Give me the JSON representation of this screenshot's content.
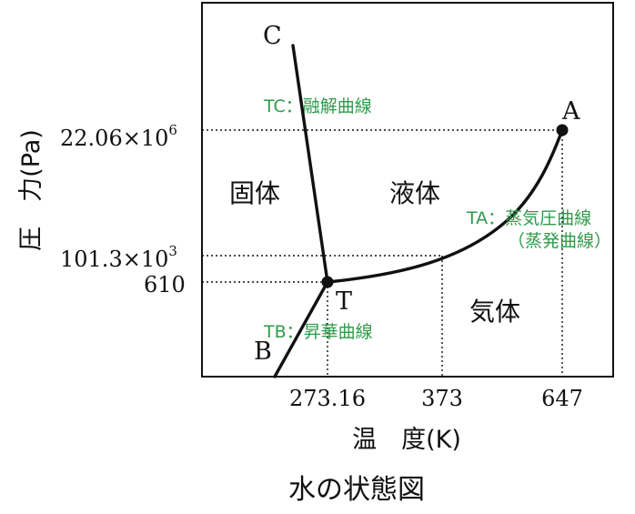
{
  "chart_data": {
    "type": "phase-diagram",
    "title": "水の状態図",
    "xlabel": "温　度(K)",
    "ylabel": "圧　力(Pa)",
    "x_ticks": [
      "273.16",
      "373",
      "647"
    ],
    "y_ticks": [
      "22.06×10",
      "101.3×10",
      "610"
    ],
    "y_tick_exponents": [
      "6",
      "3",
      ""
    ],
    "points": [
      {
        "label": "T",
        "x": 273.16,
        "y": 610
      },
      {
        "label": "A",
        "x": 647,
        "y": 22060000
      }
    ],
    "curve_ends": {
      "C": "C",
      "B": "B"
    },
    "regions": [
      "固体",
      "液体",
      "気体"
    ],
    "curves": [
      {
        "name": "TC：融解曲線"
      },
      {
        "name": "TA：蒸気圧曲線",
        "sub": "（蒸発曲線）"
      },
      {
        "name": "TB：昇華曲線"
      }
    ]
  },
  "colors": {
    "annotation": "#2e9b4a",
    "line": "#111111"
  }
}
